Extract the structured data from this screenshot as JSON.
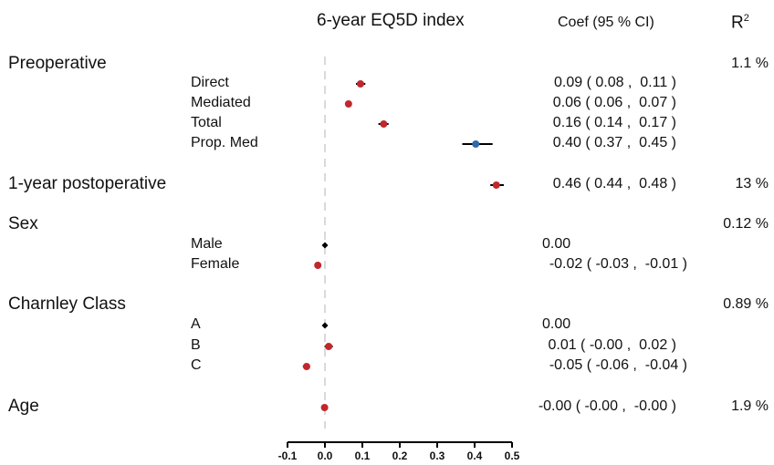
{
  "chart_data": {
    "type": "forest",
    "title": "6-year EQ5D index",
    "coef_header": "Coef (95 % CI)",
    "r2_header_base": "R",
    "r2_header_sup": "2",
    "x_ticks": [
      "-0.1",
      "0.0",
      "0.1",
      "0.2",
      "0.3",
      "0.4",
      "0.5"
    ],
    "xlim": [
      -0.1,
      0.5
    ],
    "reference_line": 0,
    "groups": [
      {
        "label": "Preoperative",
        "r2": "1.1 %",
        "coef": "",
        "rows": [
          {
            "label": "Direct",
            "est": 0.095,
            "lo": 0.083,
            "hi": 0.108,
            "text": "0.09 ( 0.08 ,  0.11 )",
            "color": "#c0282d"
          },
          {
            "label": "Mediated",
            "est": 0.063,
            "lo": 0.058,
            "hi": 0.068,
            "text": "0.06 ( 0.06 ,  0.07 )",
            "color": "#c0282d"
          },
          {
            "label": "Total",
            "est": 0.157,
            "lo": 0.143,
            "hi": 0.17,
            "text": "0.16 ( 0.14 ,  0.17 )",
            "color": "#c0282d"
          },
          {
            "label": "Prop. Med",
            "est": 0.403,
            "lo": 0.367,
            "hi": 0.448,
            "text": "0.40 ( 0.37 ,  0.45 )",
            "color": "#2f6aa8"
          }
        ]
      },
      {
        "label": "1-year postoperative",
        "r2": "13 %",
        "est": 0.458,
        "lo": 0.442,
        "hi": 0.478,
        "coef": "0.46 ( 0.44 ,  0.48 )",
        "color": "#c0282d",
        "rows": []
      },
      {
        "label": "Sex",
        "r2": "0.12 %",
        "coef": "",
        "rows": [
          {
            "label": "Male",
            "est": 0.0,
            "ref": true,
            "text": "0.00",
            "color": "#000000"
          },
          {
            "label": "Female",
            "est": -0.019,
            "lo": -0.027,
            "hi": -0.011,
            "text": "-0.02 ( -0.03 ,  -0.01 )",
            "color": "#c0282d"
          }
        ]
      },
      {
        "label": "Charnley Class",
        "r2": "0.89 %",
        "coef": "",
        "rows": [
          {
            "label": "A",
            "est": 0.0,
            "ref": true,
            "text": "0.00",
            "color": "#000000"
          },
          {
            "label": "B",
            "est": 0.01,
            "lo": -0.001,
            "hi": 0.021,
            "text": "0.01 ( -0.00 ,  0.02 )",
            "color": "#c0282d"
          },
          {
            "label": "C",
            "est": -0.049,
            "lo": -0.059,
            "hi": -0.04,
            "text": "-0.05 ( -0.06 ,  -0.04 )",
            "color": "#c0282d"
          }
        ]
      },
      {
        "label": "Age",
        "r2": "1.9 %",
        "est": -0.001,
        "lo": -0.002,
        "hi": 0.0,
        "coef": "-0.00 ( -0.00 ,  -0.00 )",
        "color": "#c0282d",
        "rows": []
      }
    ]
  }
}
